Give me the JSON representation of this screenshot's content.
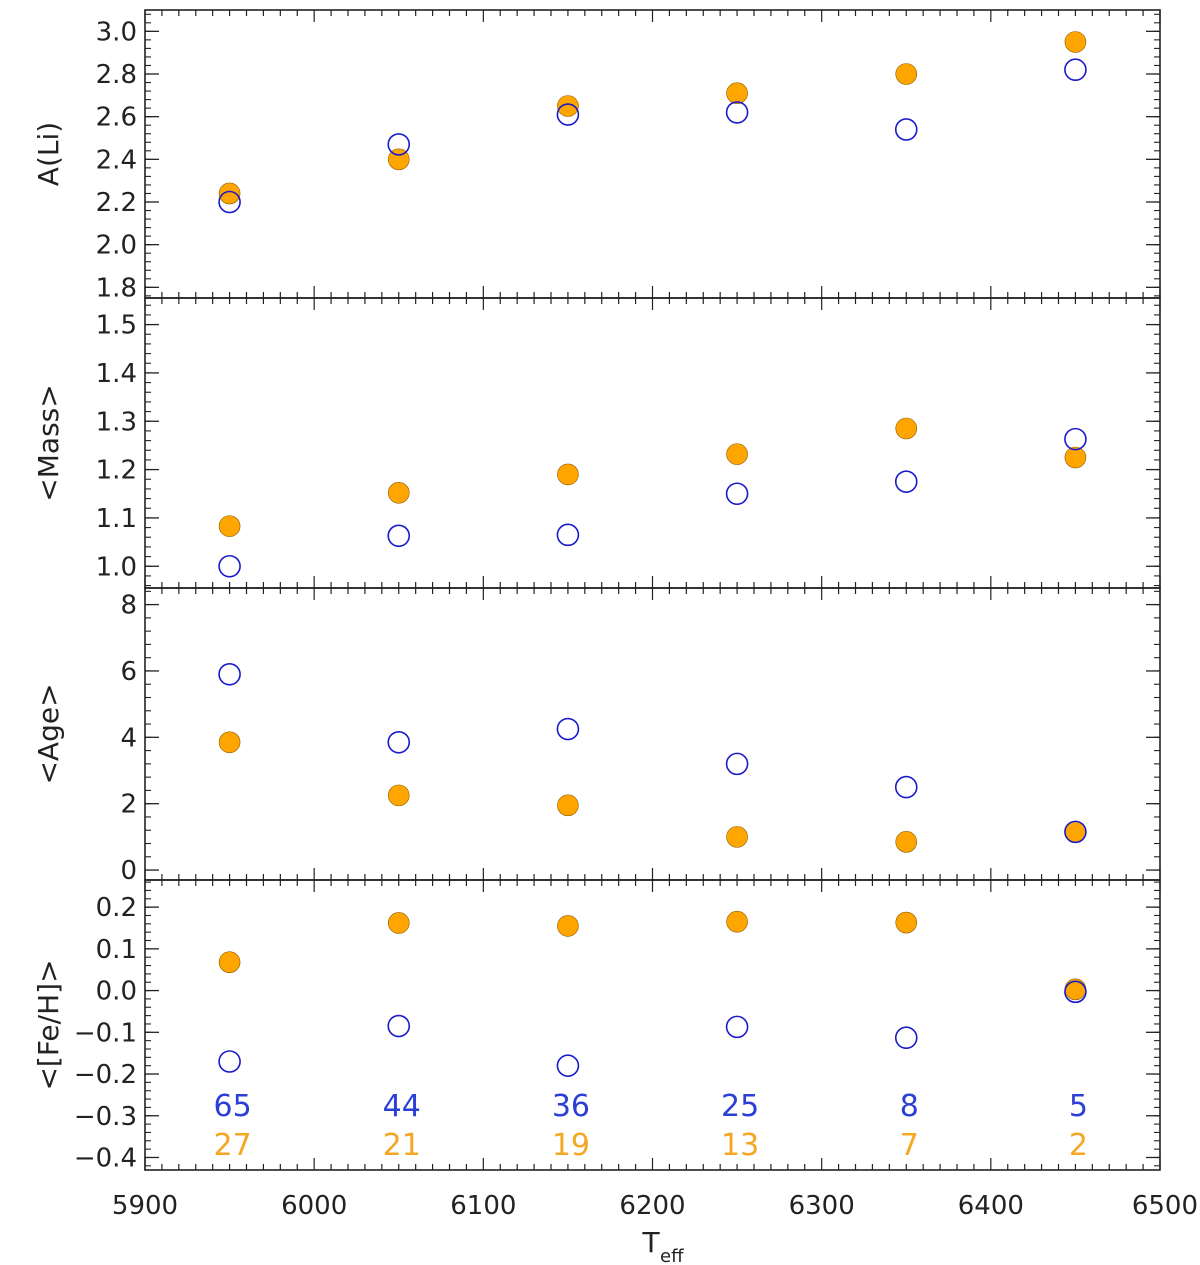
{
  "chart_data": [
    {
      "type": "scatter",
      "ylabel": "A(Li)",
      "xlim": [
        5900,
        6500
      ],
      "ylim": [
        1.75,
        3.1
      ],
      "yticks": [
        1.8,
        2.0,
        2.2,
        2.4,
        2.6,
        2.8,
        3.0
      ],
      "ytick_labels": [
        "1.8",
        "2.0",
        "2.2",
        "2.4",
        "2.6",
        "2.8",
        "3.0"
      ],
      "x": [
        5950,
        6050,
        6150,
        6250,
        6350,
        6450
      ],
      "series": [
        {
          "marker": "filled",
          "color": "#ffa500",
          "values": [
            2.24,
            2.4,
            2.65,
            2.71,
            2.8,
            2.95
          ]
        },
        {
          "marker": "open",
          "color": "#1a1acc",
          "values": [
            2.2,
            2.47,
            2.61,
            2.62,
            2.54,
            2.82
          ]
        }
      ]
    },
    {
      "type": "scatter",
      "ylabel": "<Mass>",
      "xlim": [
        5900,
        6500
      ],
      "ylim": [
        0.955,
        1.555
      ],
      "yticks": [
        1.0,
        1.1,
        1.2,
        1.3,
        1.4,
        1.5
      ],
      "ytick_labels": [
        "1.0",
        "1.1",
        "1.2",
        "1.3",
        "1.4",
        "1.5"
      ],
      "x": [
        5950,
        6050,
        6150,
        6250,
        6350,
        6450
      ],
      "series": [
        {
          "marker": "filled",
          "color": "#ffa500",
          "values": [
            1.083,
            1.152,
            1.19,
            1.232,
            1.285,
            1.225
          ]
        },
        {
          "marker": "open",
          "color": "#1a1acc",
          "values": [
            1.0,
            1.063,
            1.065,
            1.15,
            1.175,
            1.263
          ]
        }
      ]
    },
    {
      "type": "scatter",
      "ylabel": "<Age>",
      "xlim": [
        5900,
        6500
      ],
      "ylim": [
        -0.3,
        8.5
      ],
      "yticks": [
        0,
        2,
        4,
        6,
        8
      ],
      "ytick_labels": [
        "0",
        "2",
        "4",
        "6",
        "8"
      ],
      "x": [
        5950,
        6050,
        6150,
        6250,
        6350,
        6450
      ],
      "series": [
        {
          "marker": "filled",
          "color": "#ffa500",
          "values": [
            3.85,
            2.25,
            1.95,
            1.0,
            0.85,
            1.15
          ]
        },
        {
          "marker": "open",
          "color": "#1a1acc",
          "values": [
            5.9,
            3.85,
            4.25,
            3.2,
            2.5,
            1.15
          ]
        }
      ]
    },
    {
      "type": "scatter",
      "ylabel": "<[Fe/H]>",
      "xlabel_main": "T",
      "xlabel_sub": "eff",
      "xlim": [
        5900,
        6500
      ],
      "ylim": [
        -0.43,
        0.265
      ],
      "yticks": [
        -0.4,
        -0.3,
        -0.2,
        -0.1,
        0.0,
        0.1,
        0.2
      ],
      "ytick_labels": [
        "−0.4",
        "−0.3",
        "−0.2",
        "−0.1",
        "0.0",
        "0.1",
        "0.2"
      ],
      "xticks": [
        5900,
        6000,
        6100,
        6200,
        6300,
        6400,
        6500
      ],
      "xtick_labels": [
        "5900",
        "6000",
        "6100",
        "6200",
        "6300",
        "6400",
        "6500"
      ],
      "x": [
        5950,
        6050,
        6150,
        6250,
        6350,
        6450
      ],
      "series": [
        {
          "marker": "filled",
          "color": "#ffa500",
          "values": [
            0.068,
            0.162,
            0.155,
            0.165,
            0.163,
            0.003
          ]
        },
        {
          "marker": "open",
          "color": "#1a1acc",
          "values": [
            -0.17,
            -0.085,
            -0.18,
            -0.087,
            -0.113,
            -0.003
          ]
        }
      ],
      "annotations": {
        "open_counts": {
          "color": "#2b3fd6",
          "labels": [
            "65",
            "44",
            "36",
            "25",
            "8",
            "5"
          ]
        },
        "filled_counts": {
          "color": "#f5a623",
          "labels": [
            "27",
            "21",
            "19",
            "13",
            "7",
            "2"
          ]
        }
      }
    }
  ]
}
